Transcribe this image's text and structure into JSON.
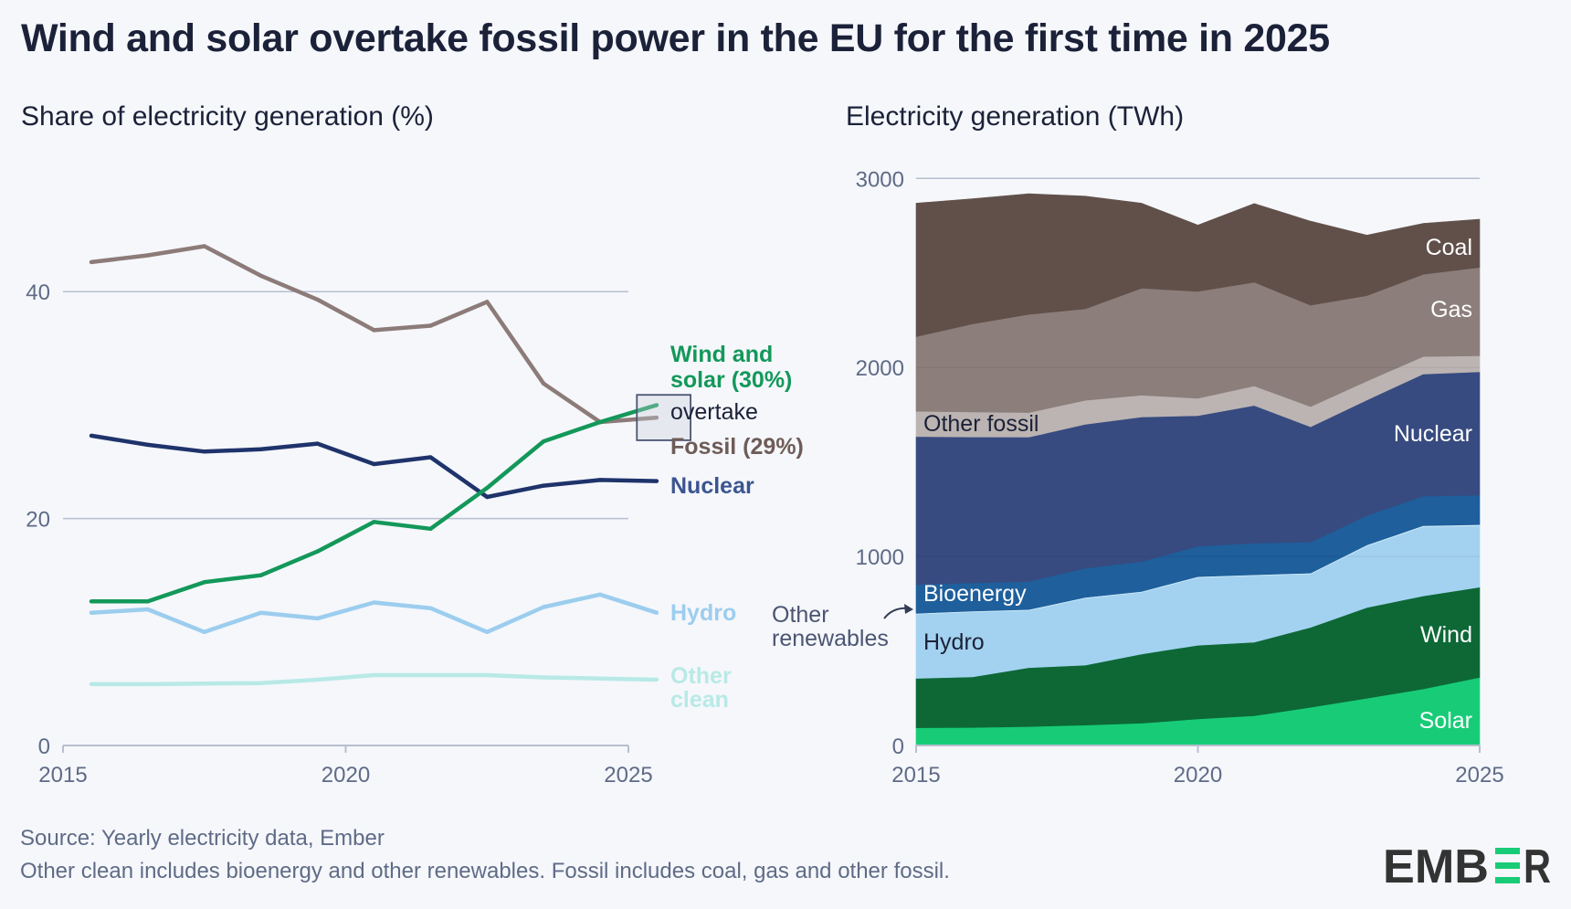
{
  "title": "Wind and solar overtake fossil power in the EU for the first time in 2025",
  "footer": {
    "source": "Source: Yearly electricity data, Ember",
    "note": "Other clean includes bioenergy and other renewables. Fossil includes coal, gas and other fossil."
  },
  "logo": {
    "text_before": "EMB",
    "text_after": "R",
    "accent_color": "#18cc77",
    "text_color": "#333333"
  },
  "chart_data": [
    {
      "type": "line",
      "title": "Share of electricity generation (%)",
      "xlabel": "",
      "ylabel": "",
      "xlim": [
        2015,
        2025
      ],
      "ylim": [
        0,
        50
      ],
      "x_ticks": [
        2015,
        2020,
        2025
      ],
      "y_ticks": [
        0,
        20,
        40
      ],
      "grid": true,
      "x": [
        2015.5,
        2016.5,
        2017.5,
        2018.5,
        2019.5,
        2020.5,
        2021.5,
        2022.5,
        2023.5,
        2024.5,
        2025.5
      ],
      "series": [
        {
          "name": "Fossil",
          "label": "Fossil (29%)",
          "color": "#8c7b78",
          "label_color": "#6e5c58",
          "values": [
            42.6,
            43.2,
            44.0,
            41.4,
            39.3,
            36.6,
            37.0,
            39.1,
            31.9,
            28.5,
            28.9
          ]
        },
        {
          "name": "Wind and solar",
          "label": "Wind and solar (30%)",
          "color": "#13985a",
          "label_color": "#13985a",
          "values": [
            12.7,
            12.7,
            14.4,
            15.0,
            17.1,
            19.7,
            19.1,
            22.7,
            26.8,
            28.5,
            30.0
          ]
        },
        {
          "name": "Nuclear",
          "label": "Nuclear",
          "color": "#1f336b",
          "label_color": "#3c5590",
          "values": [
            27.3,
            26.5,
            25.9,
            26.1,
            26.6,
            24.8,
            25.4,
            21.9,
            22.9,
            23.4,
            23.3
          ]
        },
        {
          "name": "Hydro",
          "label": "Hydro",
          "color": "#9ccdee",
          "label_color": "#9ccdee",
          "values": [
            11.7,
            12.0,
            10.0,
            11.7,
            11.2,
            12.6,
            12.1,
            10.0,
            12.2,
            13.3,
            11.7
          ]
        },
        {
          "name": "Other clean",
          "label": "Other clean",
          "color": "#b8e9e6",
          "label_color": "#b8e9e6",
          "values": [
            5.4,
            5.4,
            5.45,
            5.5,
            5.8,
            6.2,
            6.2,
            6.2,
            6.0,
            5.9,
            5.8
          ]
        }
      ],
      "annotations": [
        {
          "text": "overtake",
          "box_x": [
            2025.15,
            2026.1
          ],
          "box_y": [
            26.9,
            30.9
          ]
        }
      ]
    },
    {
      "type": "area",
      "stacked": true,
      "title": "Electricity generation (TWh)",
      "xlabel": "",
      "ylabel": "",
      "xlim": [
        2015,
        2025
      ],
      "ylim": [
        0,
        3000
      ],
      "x_ticks": [
        2015,
        2020,
        2025
      ],
      "y_ticks": [
        0,
        1000,
        2000,
        3000
      ],
      "grid": true,
      "x": [
        2015,
        2016,
        2017,
        2018,
        2019,
        2020,
        2021,
        2022,
        2023,
        2024,
        2025
      ],
      "series": [
        {
          "name": "Solar",
          "color": "#18cc77",
          "label_color": "#ffffff",
          "values": [
            94,
            95,
            100,
            108,
            118,
            140,
            157,
            202,
            250,
            299,
            360
          ]
        },
        {
          "name": "Wind",
          "color": "#0d6836",
          "label_color": "#ffffff",
          "values": [
            261,
            268,
            312,
            317,
            366,
            390,
            389,
            423,
            480,
            492,
            477
          ]
        },
        {
          "name": "Hydro",
          "color": "#a3d2f0",
          "label_color": "#1b2138",
          "values": [
            340,
            344,
            303,
            354,
            327,
            359,
            353,
            283,
            326,
            367,
            326
          ]
        },
        {
          "name": "Other renewables",
          "color": "#d4eef8",
          "label_color": "#1b2138",
          "values": [
            4,
            4,
            4,
            4,
            4,
            4,
            4,
            4,
            5,
            5,
            5
          ]
        },
        {
          "name": "Bioenergy",
          "color": "#1e5f9c",
          "label_color": "#ffffff",
          "values": [
            153,
            149,
            149,
            154,
            158,
            161,
            167,
            164,
            156,
            156,
            156
          ]
        },
        {
          "name": "Nuclear",
          "color": "#374b80",
          "label_color": "#ffffff",
          "values": [
            782,
            772,
            763,
            762,
            765,
            691,
            729,
            610,
            611,
            646,
            653
          ]
        },
        {
          "name": "Other fossil",
          "color": "#bcb4b2",
          "label_color": "#1b2138",
          "values": [
            134,
            132,
            130,
            127,
            115,
            92,
            103,
            107,
            100,
            93,
            85
          ]
        },
        {
          "name": "Gas",
          "color": "#8c7e7b",
          "label_color": "#ffffff",
          "values": [
            395,
            466,
            520,
            484,
            566,
            565,
            549,
            536,
            452,
            435,
            467
          ]
        },
        {
          "name": "Coal",
          "color": "#61504a",
          "label_color": "#ffffff",
          "values": [
            706,
            662,
            638,
            596,
            450,
            351,
            416,
            445,
            320,
            269,
            255
          ]
        }
      ],
      "annotations": [
        {
          "text_lines": [
            "Other",
            "renewables"
          ],
          "points_to": "Other renewables"
        }
      ]
    }
  ]
}
